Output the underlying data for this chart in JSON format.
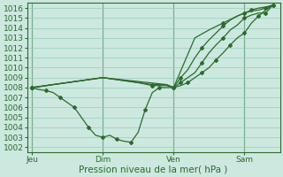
{
  "xlabel": "Pression niveau de la mer( hPa )",
  "background_color": "#cce8df",
  "plot_bg_color": "#cce8df",
  "grid_color": "#99ccbb",
  "line_color": "#2d6a2d",
  "axis_color": "#2d6a2d",
  "text_color": "#2d6a2d",
  "ylim": [
    1001.5,
    1016.5
  ],
  "yticks": [
    1002,
    1003,
    1004,
    1005,
    1006,
    1007,
    1008,
    1009,
    1010,
    1011,
    1012,
    1013,
    1014,
    1015,
    1016
  ],
  "xtick_labels": [
    "Jeu",
    "Dim",
    "Ven",
    "Sam"
  ],
  "xtick_positions": [
    0,
    30,
    60,
    90
  ],
  "xlim": [
    -2,
    105
  ],
  "vlines": [
    0,
    30,
    60,
    90
  ],
  "s1_x": [
    0,
    3,
    6,
    9,
    12,
    15,
    18,
    21,
    24,
    27,
    30,
    33,
    36,
    39,
    42,
    45,
    48,
    51,
    54,
    57,
    60,
    63,
    66,
    69,
    72,
    75,
    78,
    81,
    84,
    87,
    90,
    93,
    96,
    99,
    102
  ],
  "s1_y": [
    1008,
    1007.8,
    1007.7,
    1007.5,
    1007,
    1006.5,
    1006,
    1005,
    1004,
    1003.2,
    1003,
    1003.2,
    1002.8,
    1002.6,
    1002.5,
    1003.5,
    1005.8,
    1007.5,
    1008,
    1008,
    1008,
    1008.2,
    1008.5,
    1009,
    1009.5,
    1010,
    1010.8,
    1011.5,
    1012.3,
    1013,
    1013.5,
    1014.5,
    1015.2,
    1015.8,
    1016.3
  ],
  "s2_x": [
    0,
    30,
    45,
    51,
    57,
    60,
    63,
    66,
    69,
    72,
    75,
    78,
    81,
    84,
    87,
    90,
    93,
    96,
    99,
    102
  ],
  "s2_y": [
    1008,
    1009,
    1008.5,
    1008.2,
    1008.2,
    1008,
    1008.5,
    1009,
    1009.5,
    1010.5,
    1011.5,
    1012.3,
    1013,
    1013.8,
    1014.3,
    1015,
    1015.3,
    1015.5,
    1015.5,
    1016.3
  ],
  "s3_x": [
    0,
    30,
    45,
    51,
    57,
    60,
    63,
    66,
    69,
    72,
    75,
    78,
    81,
    84,
    87,
    90,
    93,
    96,
    99,
    102
  ],
  "s3_y": [
    1008,
    1009,
    1008.5,
    1008.3,
    1008.3,
    1008,
    1009,
    1009.8,
    1011,
    1012,
    1012.8,
    1013.5,
    1014.2,
    1014.8,
    1015.2,
    1015.5,
    1015.7,
    1015.8,
    1016,
    1016.3
  ],
  "s4_x": [
    0,
    30,
    57,
    60,
    69,
    75,
    81,
    87,
    90,
    93,
    96,
    99,
    102
  ],
  "s4_y": [
    1008,
    1009,
    1008.3,
    1008,
    1013,
    1013.8,
    1014.5,
    1015.2,
    1015.5,
    1015.8,
    1016,
    1016.1,
    1016.3
  ],
  "fontsize": 7.5,
  "tick_fontsize": 6.5
}
